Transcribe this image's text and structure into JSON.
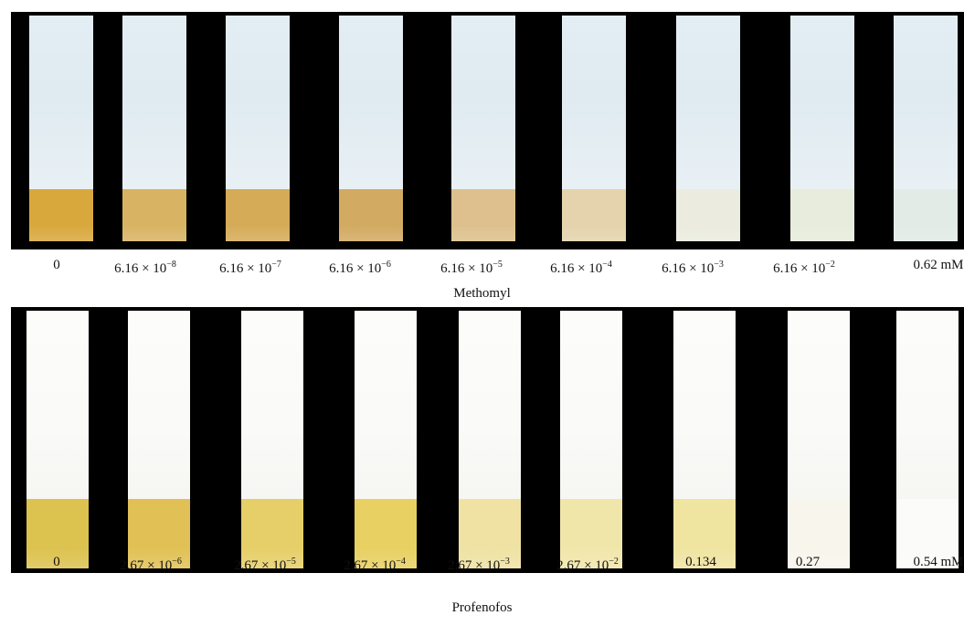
{
  "methomyl": {
    "name": "Methomyl",
    "concentrations": [
      {
        "mantissa": "0",
        "exp": ""
      },
      {
        "mantissa": "6.16 × 10",
        "exp": "−8"
      },
      {
        "mantissa": "6.16 × 10",
        "exp": "−7"
      },
      {
        "mantissa": "6.16 × 10",
        "exp": "−6"
      },
      {
        "mantissa": "6.16 × 10",
        "exp": "−5"
      },
      {
        "mantissa": "6.16 × 10",
        "exp": "−4"
      },
      {
        "mantissa": "6.16 × 10",
        "exp": "−3"
      },
      {
        "mantissa": "6.16 × 10",
        "exp": "−2"
      },
      {
        "mantissa": "0.62 mM",
        "exp": ""
      }
    ],
    "strip_colors": [
      "#d9a83d",
      "#d8b363",
      "#d5ab58",
      "#d2aa62",
      "#ddc08d",
      "#e4d3ac",
      "#ebecdf",
      "#e7ecdc",
      "#e2ebe6"
    ]
  },
  "profenofos": {
    "name": "Profenofos",
    "concentrations": [
      {
        "mantissa": "0",
        "exp": ""
      },
      {
        "mantissa": "2.67 × 10",
        "exp": "−6"
      },
      {
        "mantissa": "2.67 × 10",
        "exp": "−5"
      },
      {
        "mantissa": "2.67 × 10",
        "exp": "−4"
      },
      {
        "mantissa": "2.67 × 10",
        "exp": "−3"
      },
      {
        "mantissa": "2.67 × 10",
        "exp": "−2"
      },
      {
        "mantissa": "0.134",
        "exp": ""
      },
      {
        "mantissa": "0.27",
        "exp": ""
      },
      {
        "mantissa": "0.54 mM",
        "exp": ""
      }
    ],
    "strip_colors": [
      "#dcc24f",
      "#e1c155",
      "#e6cf69",
      "#e8d062",
      "#efe2a3",
      "#f1e6aa",
      "#f0e4a1",
      "#f7f5ec",
      "#fbfbf9"
    ]
  }
}
